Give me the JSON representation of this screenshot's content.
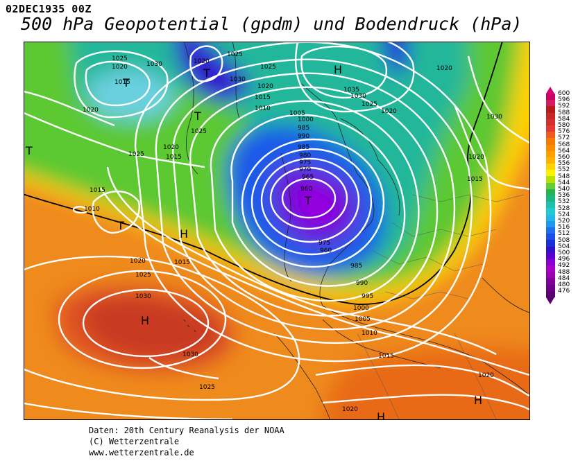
{
  "header": {
    "date": "02DEC1935 00Z",
    "title": "500 hPa Geopotential (gpdm) und Bodendruck (hPa)"
  },
  "legend": {
    "levels": [
      "600",
      "596",
      "592",
      "588",
      "584",
      "580",
      "576",
      "572",
      "568",
      "564",
      "560",
      "556",
      "552",
      "548",
      "544",
      "540",
      "536",
      "532",
      "528",
      "524",
      "520",
      "516",
      "512",
      "508",
      "504",
      "500",
      "496",
      "492",
      "488",
      "484",
      "480",
      "476"
    ],
    "colors": [
      "#cc0066",
      "#d81b60",
      "#b71c1c",
      "#c62828",
      "#d32f2f",
      "#e53935",
      "#ef5b1f",
      "#f57c00",
      "#fb8c00",
      "#ffa000",
      "#ffb300",
      "#ffd200",
      "#fff200",
      "#b6e000",
      "#66cc33",
      "#22b455",
      "#1bb77f",
      "#20c0b0",
      "#21c9d1",
      "#22b7e7",
      "#1e97f0",
      "#1e6ff0",
      "#1a4ee8",
      "#1830d8",
      "#3010c8",
      "#5a00d0",
      "#8a00d0",
      "#a800c8",
      "#9a00b0",
      "#82009a",
      "#6c0088",
      "#5a0070"
    ]
  },
  "centers": [
    {
      "id": "h-atlantic",
      "label": "H"
    },
    {
      "id": "h-greenland",
      "label": "H"
    },
    {
      "id": "h-med",
      "label": "H"
    },
    {
      "id": "h-africa",
      "label": "H"
    },
    {
      "id": "t-main",
      "label": "T"
    },
    {
      "id": "t-canada",
      "label": "T"
    },
    {
      "id": "t-greenland",
      "label": "T"
    },
    {
      "id": "t-west",
      "label": "T"
    },
    {
      "id": "t-atlantic",
      "label": "T"
    },
    {
      "id": "h-mid",
      "label": "H"
    }
  ],
  "isobar_labels": [
    "1025",
    "1020",
    "1030",
    "1015",
    "1010",
    "1005",
    "1000",
    "995",
    "990",
    "985",
    "980",
    "975",
    "970",
    "965",
    "960",
    "1035"
  ],
  "footer": {
    "line1": "Daten: 20th Century Reanalysis der NOAA",
    "line2": "(C) Wetterzentrale",
    "line3": "www.wetterzentrale.de"
  }
}
